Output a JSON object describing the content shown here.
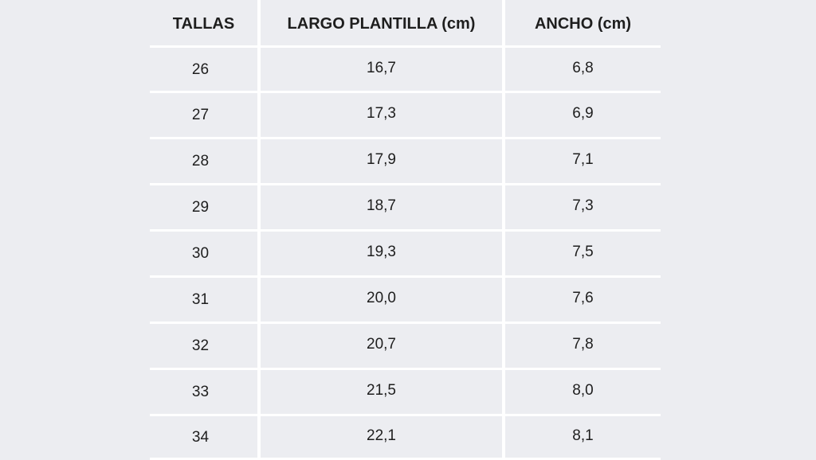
{
  "headers": [
    "TALLAS",
    "LARGO PLANTILLA (cm)",
    "ANCHO (cm)"
  ],
  "rows": [
    [
      "26",
      "16,7",
      "6,8"
    ],
    [
      "27",
      "17,3",
      "6,9"
    ],
    [
      "28",
      "17,9",
      "7,1"
    ],
    [
      "29",
      "18,7",
      "7,3"
    ],
    [
      "30",
      "19,3",
      "7,5"
    ],
    [
      "31",
      "20,0",
      "7,6"
    ],
    [
      "32",
      "20,7",
      "7,8"
    ],
    [
      "33",
      "21,5",
      "8,0"
    ],
    [
      "34",
      "22,1",
      "8,1"
    ]
  ],
  "colors": {
    "background": "#ecedf1",
    "grid": "#ffffff",
    "text": "#1e1e1e"
  }
}
